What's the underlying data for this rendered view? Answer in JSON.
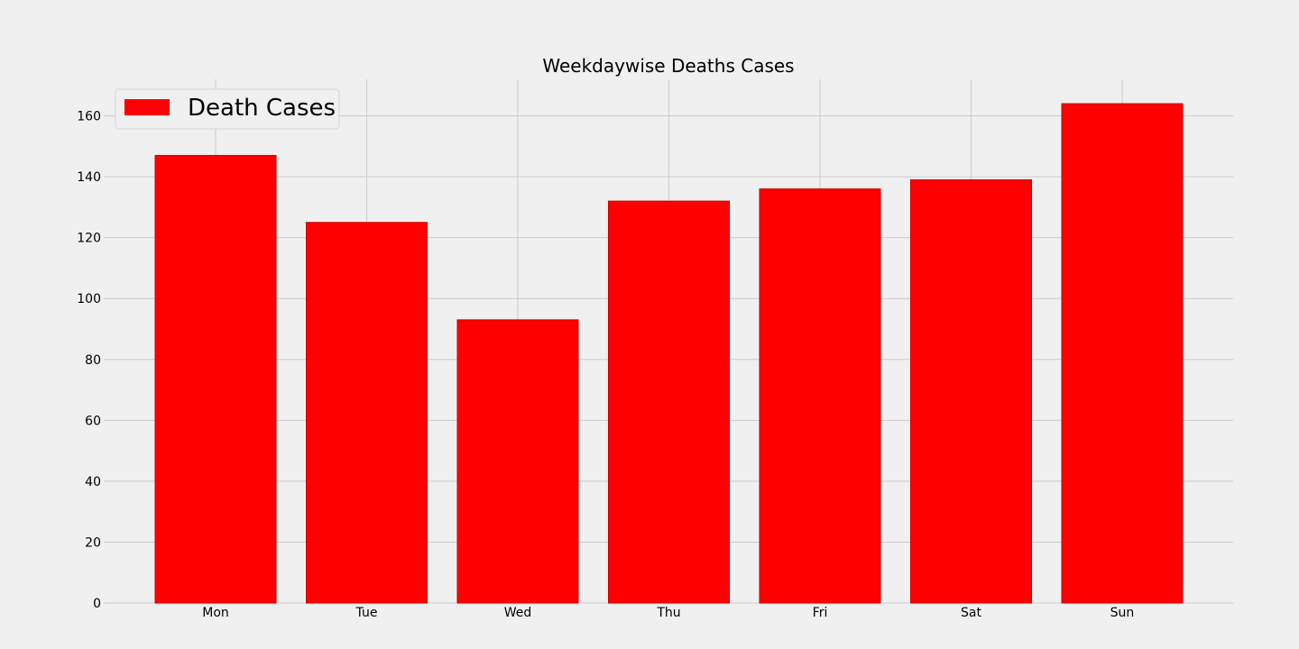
{
  "chart_data": {
    "type": "bar",
    "title": "Weekdaywise Deaths Cases",
    "xlabel": "",
    "ylabel": "",
    "categories": [
      "Mon",
      "Tue",
      "Wed",
      "Thu",
      "Fri",
      "Sat",
      "Sun"
    ],
    "series": [
      {
        "name": "Death Cases",
        "values": [
          147,
          125,
          93,
          132,
          136,
          139,
          164
        ],
        "color": "#ff0000"
      }
    ],
    "ylim": [
      0,
      172
    ],
    "yticks": [
      0,
      20,
      40,
      60,
      80,
      100,
      120,
      140,
      160
    ],
    "grid": true,
    "legend": {
      "position": "top-left"
    },
    "background_color": "#f0f0f0",
    "grid_color": "#cbcbcb"
  }
}
